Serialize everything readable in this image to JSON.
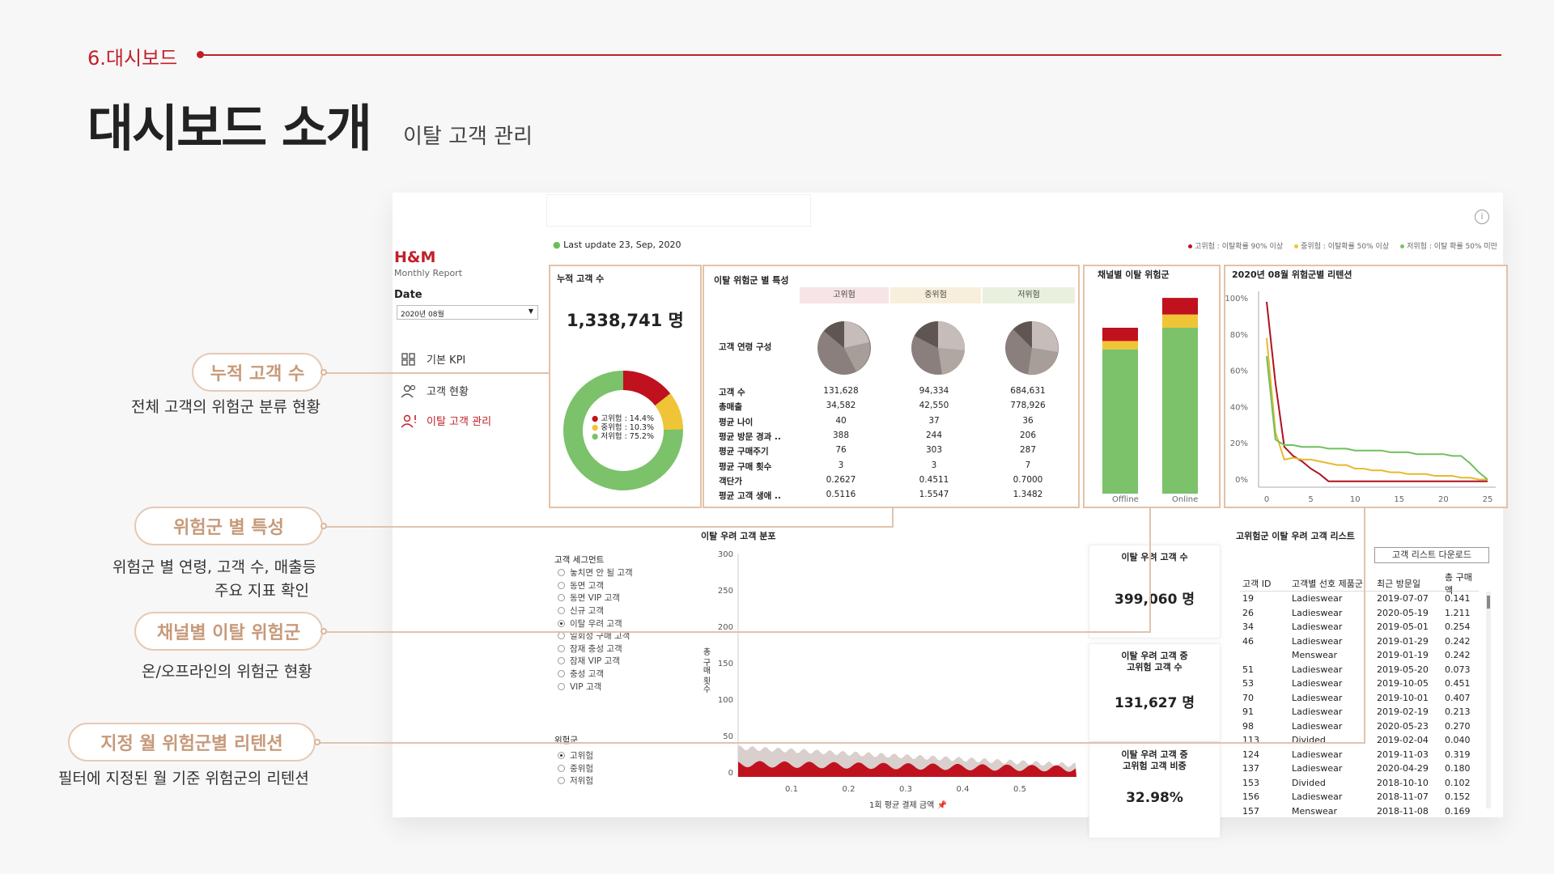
{
  "header": {
    "section": "6.대시보드",
    "title": "대시보드 소개",
    "subtitle": "이탈 고객 관리"
  },
  "callouts": [
    {
      "pill": "누적 고객 수",
      "desc": "전체 고객의 위험군 분류 현황"
    },
    {
      "pill": "위험군 별 특성",
      "desc_line1": "위험군 별 연령, 고객 수, 매출등",
      "desc_line2": "주요 지표 확인"
    },
    {
      "pill": "채널별 이탈 위험군",
      "desc": "온/오프라인의 위험군 현황"
    },
    {
      "pill": "지정 월 위험군별 리텐션",
      "desc": "필터에 지정된 월 기준 위험군의 리텐션"
    }
  ],
  "sidebar": {
    "brand": "H&M",
    "brand_sub": "Monthly Report",
    "date_label": "Date",
    "date_value": "2020년 08월",
    "nav": [
      {
        "label": "기본 KPI",
        "icon": "kpi-grid-icon",
        "active": false
      },
      {
        "label": "고객 현황",
        "icon": "users-icon",
        "active": false
      },
      {
        "label": "이탈 고객 관리",
        "icon": "user-alert-icon",
        "active": true
      }
    ]
  },
  "topbar": {
    "last_update": "Last update 23, Sep, 2020",
    "legend": [
      {
        "label": "고위험 : 이탈확률 90% 이상",
        "color": "#c0111f"
      },
      {
        "label": "중위험 : 이탈확률 50% 이상",
        "color": "#f0c437"
      },
      {
        "label": "저위험 : 이탈 확률 50% 미만",
        "color": "#7bc26a"
      }
    ]
  },
  "cumulative": {
    "title": "누적 고객 수",
    "value": "1,338,741 명",
    "donut": [
      {
        "label": "고위험 : 14.4%",
        "pct": 14.4,
        "color": "#c0111f"
      },
      {
        "label": "중위험 : 10.3%",
        "pct": 10.3,
        "color": "#f0c437"
      },
      {
        "label": "저위험 : 75.2%",
        "pct": 75.2,
        "color": "#7bc26a"
      }
    ]
  },
  "risk_features": {
    "title": "이탈 위험군 별 특성",
    "groups": [
      "고위험",
      "중위험",
      "저위험"
    ],
    "age_label": "고객 연령 구성",
    "rows": [
      {
        "label": "고객 수",
        "values": [
          "131,628",
          "94,334",
          "684,631"
        ]
      },
      {
        "label": "총매출",
        "values": [
          "34,582",
          "42,550",
          "778,926"
        ]
      },
      {
        "label": "평균 나이",
        "values": [
          "40",
          "37",
          "36"
        ]
      },
      {
        "label": "평균 방문 경과 ..",
        "values": [
          "388",
          "244",
          "206"
        ]
      },
      {
        "label": "평균 구매주기",
        "values": [
          "76",
          "303",
          "287"
        ]
      },
      {
        "label": "평균 구매 횟수",
        "values": [
          "3",
          "3",
          "7"
        ]
      },
      {
        "label": "객단가",
        "values": [
          "0.2627",
          "0.4511",
          "0.7000"
        ]
      },
      {
        "label": "평균 고객 생애 ..",
        "values": [
          "0.5116",
          "1.5547",
          "1.3482"
        ]
      }
    ]
  },
  "channel": {
    "title": "채널별 이탈 위험군",
    "categories": [
      "Offline",
      "Online"
    ],
    "colors": {
      "high": "#c0111f",
      "mid": "#f0c437",
      "low": "#7bc26a"
    }
  },
  "chart_data": [
    {
      "type": "bar",
      "stacked": true,
      "categories": [
        "Offline",
        "Online"
      ],
      "series": [
        {
          "name": "고위험",
          "values": [
            8,
            10
          ]
        },
        {
          "name": "중위험",
          "values": [
            5,
            8
          ]
        },
        {
          "name": "저위험",
          "values": [
            87,
            100
          ]
        }
      ]
    },
    {
      "type": "line",
      "title": "2020년 08월 위험군별 리텐션",
      "x": [
        0,
        1,
        2,
        3,
        4,
        5,
        6,
        7,
        8,
        9,
        10,
        11,
        12,
        13,
        14,
        15,
        16,
        17,
        18,
        19,
        20,
        21,
        22,
        23,
        24,
        25
      ],
      "xticks": [
        "0",
        "5",
        "10",
        "15",
        "20",
        "25"
      ],
      "yticks": [
        "100%",
        "80%",
        "60%",
        "40%",
        "20%",
        "0%"
      ],
      "ylim": [
        0,
        100
      ],
      "series": [
        {
          "name": "고위험",
          "values": [
            100,
            55,
            20,
            15,
            12,
            8,
            5,
            1,
            1,
            1,
            1,
            1,
            1,
            1,
            1,
            1,
            1,
            1,
            1,
            1,
            1,
            1,
            1,
            1,
            1,
            1
          ]
        },
        {
          "name": "중위험",
          "values": [
            80,
            28,
            13,
            14,
            13,
            13,
            12,
            11,
            10,
            10,
            8,
            8,
            7,
            7,
            6,
            6,
            5,
            5,
            5,
            4,
            4,
            4,
            3,
            3,
            2,
            2
          ]
        },
        {
          "name": "저위험",
          "values": [
            70,
            24,
            21,
            21,
            20,
            20,
            20,
            19,
            19,
            19,
            18,
            18,
            18,
            18,
            17,
            17,
            17,
            16,
            16,
            16,
            16,
            15,
            15,
            11,
            6,
            2
          ]
        }
      ]
    },
    {
      "type": "area",
      "title": "이탈 우려 고객 분포",
      "xlabel": "1회 평균 결제 금액",
      "ylabel": "총 구매 횟수",
      "xticks": [
        "0.1",
        "0.2",
        "0.3",
        "0.4",
        "0.5"
      ],
      "yticks": [
        "300",
        "250",
        "200",
        "150",
        "100",
        "50",
        "0"
      ],
      "ylim": [
        0,
        300
      ]
    }
  ],
  "retention": {
    "title": "2020년 08월 위험군별 리텐션",
    "yticks": [
      "100%",
      "80%",
      "60%",
      "40%",
      "20%",
      "0%"
    ],
    "xticks": [
      "0",
      "5",
      "10",
      "15",
      "20",
      "25"
    ]
  },
  "distribution": {
    "title": "이탈 우려 고객 분포",
    "segment_label": "고객 세그먼트",
    "segments": [
      "놓치면 안 될 고객",
      "동면 고객",
      "동면 VIP 고객",
      "신규 고객",
      "이탈 우려 고객",
      "일회성 구매 고객",
      "잠재 충성 고객",
      "잠재 VIP 고객",
      "충성 고객",
      "VIP 고객"
    ],
    "segment_selected": 4,
    "risk_label": "위험군",
    "risks": [
      "고위험",
      "중위험",
      "저위험"
    ],
    "risk_selected": 0,
    "yticks": [
      "300",
      "250",
      "200",
      "150",
      "100",
      "50",
      "0"
    ],
    "xticks": [
      "0.1",
      "0.2",
      "0.3",
      "0.4",
      "0.5"
    ],
    "xlabel": "1회 평균 결제 금액",
    "ylabel": "총 구매 횟수"
  },
  "kpis": [
    {
      "title": "이탈 우려 고객 수",
      "value": "399,060 명"
    },
    {
      "title1": "이탈 우려 고객 중",
      "title2": "고위험 고객 수",
      "value": "131,627 명"
    },
    {
      "title1": "이탈 우려 고객 중",
      "title2": "고위험 고객 비중",
      "value": "32.98%"
    }
  ],
  "customer_list": {
    "title": "고위험군 이탈 우려 고객 리스트",
    "download": "고객 리스트 다운로드",
    "columns": [
      "고객 ID",
      "고객별 선호 제품군",
      "최근 방문일",
      "총 구매액"
    ],
    "rows": [
      [
        "19",
        "Ladieswear",
        "2019-07-07",
        "0.141"
      ],
      [
        "26",
        "Ladieswear",
        "2020-05-19",
        "1.211"
      ],
      [
        "34",
        "Ladieswear",
        "2019-05-01",
        "0.254"
      ],
      [
        "46",
        "Ladieswear",
        "2019-01-29",
        "0.242"
      ],
      [
        "",
        "Menswear",
        "2019-01-19",
        "0.242"
      ],
      [
        "51",
        "Ladieswear",
        "2019-05-20",
        "0.073"
      ],
      [
        "53",
        "Ladieswear",
        "2019-10-05",
        "0.451"
      ],
      [
        "70",
        "Ladieswear",
        "2019-10-01",
        "0.407"
      ],
      [
        "91",
        "Ladieswear",
        "2019-02-19",
        "0.213"
      ],
      [
        "98",
        "Ladieswear",
        "2020-05-23",
        "0.270"
      ],
      [
        "113",
        "Divided",
        "2019-02-04",
        "0.040"
      ],
      [
        "124",
        "Ladieswear",
        "2019-11-03",
        "0.319"
      ],
      [
        "137",
        "Ladieswear",
        "2020-04-29",
        "0.180"
      ],
      [
        "153",
        "Divided",
        "2018-10-10",
        "0.102"
      ],
      [
        "156",
        "Ladieswear",
        "2018-11-07",
        "0.152"
      ],
      [
        "157",
        "Menswear",
        "2018-11-08",
        "0.169"
      ]
    ]
  }
}
